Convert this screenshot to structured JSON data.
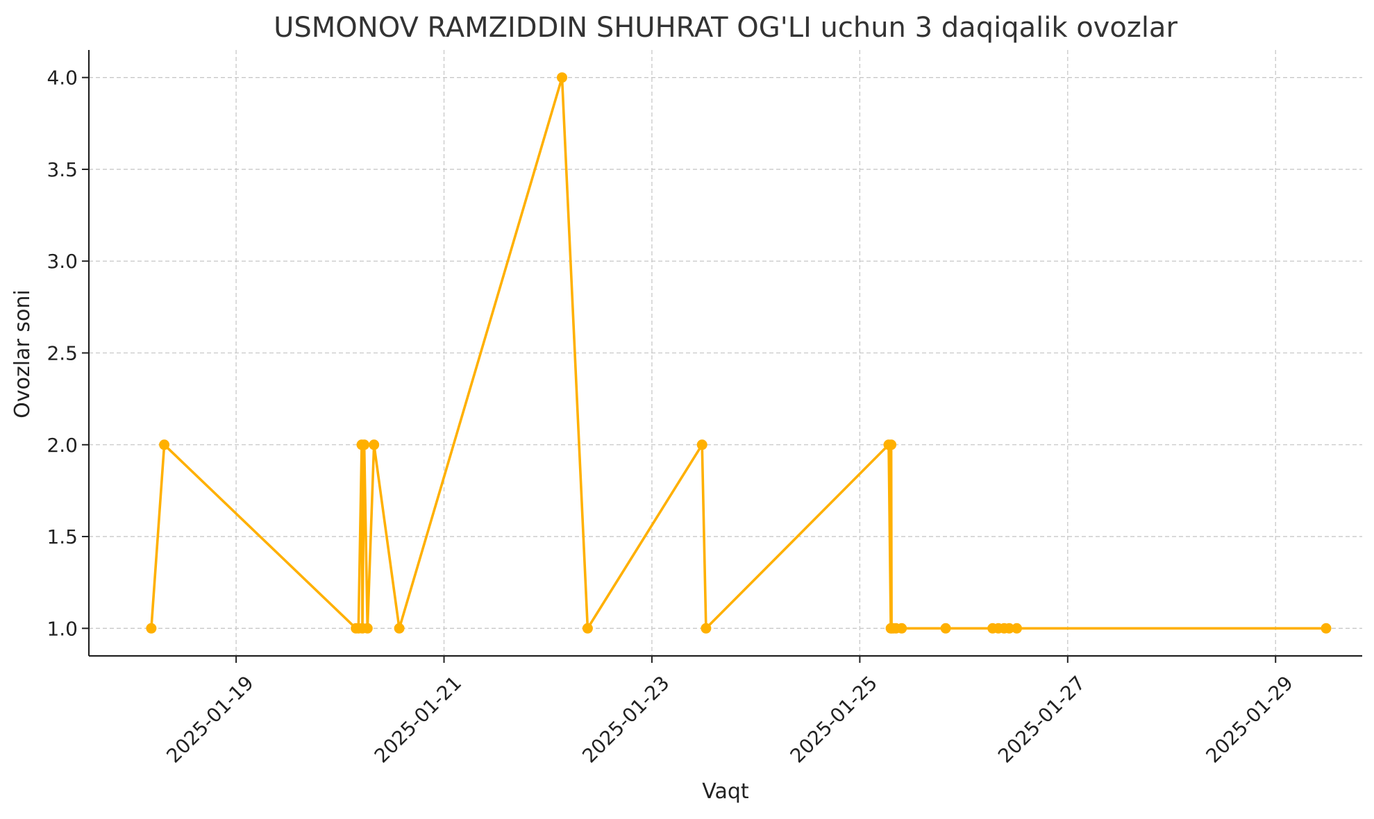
{
  "chart_data": {
    "type": "line",
    "title": "USMONOV RAMZIDDIN SHUHRAT OG'LI  uchun 3 daqiqalik ovozlar",
    "xlabel": "Vaqt",
    "ylabel": "Ovozlar soni",
    "xlim": [
      "2025-01-17T14:00",
      "2025-01-29T20:00"
    ],
    "ylim": [
      0.85,
      4.15
    ],
    "x_ticks": [
      "2025-01-19",
      "2025-01-21",
      "2025-01-23",
      "2025-01-25",
      "2025-01-27",
      "2025-01-29"
    ],
    "y_ticks": [
      1.0,
      1.5,
      2.0,
      2.5,
      3.0,
      3.5,
      4.0
    ],
    "y_tick_labels": [
      "1.0",
      "1.5",
      "2.0",
      "2.5",
      "3.0",
      "3.5",
      "4.0"
    ],
    "grid": true,
    "legend": "none",
    "color": "#FFB000",
    "series": [
      {
        "x": [
          "2025-01-18T04:25",
          "2025-01-18T07:25",
          "2025-01-20T03:40",
          "2025-01-20T04:15",
          "2025-01-20T05:00",
          "2025-01-20T05:10",
          "2025-01-20T05:35",
          "2025-01-20T06:20",
          "2025-01-20T07:50",
          "2025-01-20T13:40",
          "2025-01-22T03:15",
          "2025-01-22T09:10",
          "2025-01-23T11:35",
          "2025-01-23T12:30",
          "2025-01-25T06:40",
          "2025-01-25T07:10",
          "2025-01-25T07:15",
          "2025-01-25T07:20",
          "2025-01-25T07:45",
          "2025-01-25T08:20",
          "2025-01-25T09:40",
          "2025-01-25T19:50",
          "2025-01-26T06:40",
          "2025-01-26T08:00",
          "2025-01-26T09:20",
          "2025-01-26T10:30",
          "2025-01-26T12:15",
          "2025-01-29T11:40"
        ],
        "values": [
          1,
          2,
          1,
          1,
          2,
          1,
          2,
          1,
          2,
          1,
          4,
          1,
          2,
          1,
          2,
          1,
          2,
          1,
          1,
          1,
          1,
          1,
          1,
          1,
          1,
          1,
          1,
          1
        ]
      }
    ]
  }
}
